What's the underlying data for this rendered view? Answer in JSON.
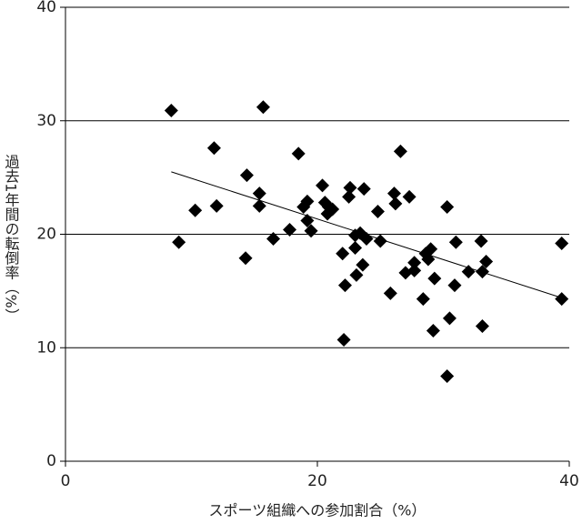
{
  "chart_data": {
    "type": "scatter",
    "xlabel": "スポーツ組織への参加割合（%）",
    "ylabel": "過去1年間の転倒率（%）",
    "xlim": [
      0,
      40
    ],
    "xticks": [
      0,
      20,
      40
    ],
    "ylim": [
      0,
      40
    ],
    "yticks": [
      0,
      10,
      20,
      30,
      40
    ],
    "grid": true,
    "color": "#000000",
    "x": [
      8.4,
      9.0,
      10.3,
      11.8,
      12.0,
      14.4,
      14.3,
      15.4,
      15.4,
      15.7,
      16.5,
      17.8,
      18.5,
      18.9,
      19.2,
      19.2,
      19.5,
      20.4,
      20.6,
      20.8,
      20.9,
      21.2,
      22.0,
      22.2,
      22.1,
      22.5,
      22.6,
      23.0,
      23.0,
      23.1,
      23.4,
      23.6,
      23.7,
      23.9,
      24.8,
      25.0,
      25.8,
      26.1,
      26.2,
      26.6,
      27.0,
      27.3,
      27.7,
      27.7,
      28.4,
      28.6,
      28.8,
      29.0,
      29.2,
      29.3,
      30.3,
      30.5,
      30.3,
      30.9,
      31.0,
      32.0,
      33.0,
      33.1,
      33.1,
      33.4,
      39.4,
      39.4
    ],
    "values": [
      30.9,
      19.3,
      22.1,
      27.6,
      22.5,
      25.2,
      17.9,
      23.6,
      22.5,
      31.2,
      19.6,
      20.4,
      27.1,
      22.4,
      22.9,
      21.2,
      20.3,
      24.3,
      22.8,
      21.8,
      22.4,
      22.2,
      18.3,
      15.5,
      10.7,
      23.3,
      24.1,
      19.9,
      18.8,
      16.4,
      20.1,
      17.3,
      24.0,
      19.6,
      22.0,
      19.4,
      14.8,
      23.6,
      22.7,
      27.3,
      16.6,
      23.3,
      16.8,
      17.5,
      14.3,
      18.3,
      17.8,
      18.7,
      11.5,
      16.1,
      22.4,
      12.6,
      7.5,
      15.5,
      19.3,
      16.7,
      19.4,
      11.9,
      16.7,
      17.6,
      19.2,
      14.3
    ],
    "trendline": {
      "x": [
        8.4,
        39.4
      ],
      "y": [
        25.5,
        14.4
      ],
      "color": "#000000"
    }
  }
}
